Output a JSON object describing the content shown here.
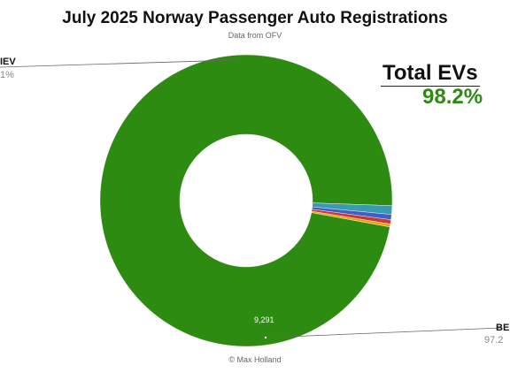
{
  "header": {
    "title": "July 2025 Norway Passenger Auto Registrations",
    "subtitle": "Data from OFV"
  },
  "summary": {
    "label": "Total EVs",
    "value": "98.2%"
  },
  "credit": "© Max Holland",
  "chart_data": {
    "type": "pie",
    "donut": true,
    "title": "July 2025 Norway Passenger Auto Registrations",
    "subtitle": "Data from OFV",
    "slices": [
      {
        "value": 9291,
        "color": "#2e8b12"
      },
      {
        "value": 92,
        "color": "#3a9bb0"
      },
      {
        "value": 55,
        "color": "#3f5fc7"
      },
      {
        "value": 45,
        "color": "#cf3535"
      },
      {
        "value": 30,
        "color": "#e8a400"
      }
    ],
    "visible_labels": [
      {
        "name": "BE",
        "pct": "97.2",
        "count": "9,291"
      },
      {
        "name": "IEV",
        "pct": "1%",
        "count": ""
      }
    ]
  }
}
